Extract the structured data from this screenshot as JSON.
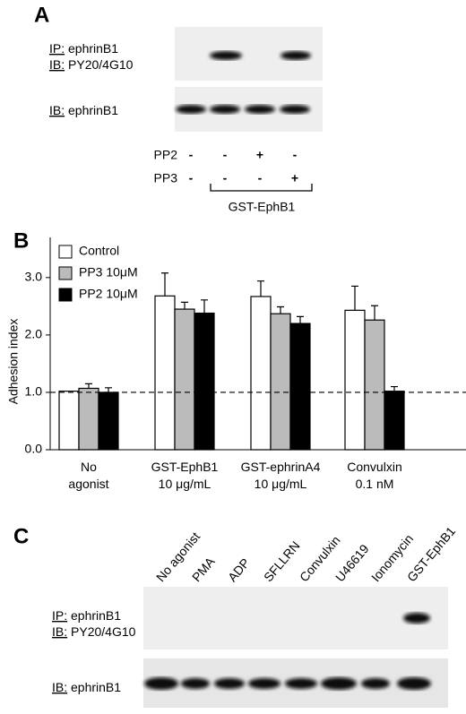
{
  "panel_a": {
    "label": "A",
    "blot1": [
      {
        "prefix": "IP:",
        "text": "ephrinB1"
      },
      {
        "prefix": "IB:",
        "text": "PY20/4G10"
      }
    ],
    "blot2": [
      {
        "prefix": "IB:",
        "text": "ephrinB1"
      }
    ],
    "rows": [
      {
        "name": "PP2",
        "signs": [
          "-",
          "-",
          "+",
          "-"
        ]
      },
      {
        "name": "PP3",
        "signs": [
          "-",
          "-",
          "-",
          "+"
        ]
      }
    ],
    "bracket": "GST-EphB1"
  },
  "chart_data": {
    "type": "bar",
    "label": "B",
    "ylabel": "Adhesion index",
    "categories": [
      "No\nagonist",
      "GST-EphB1\n10 μg/mL",
      "GST-ephrinA4\n10 μg/mL",
      "Convulxin\n0.1 nM"
    ],
    "series": [
      {
        "name": "Control",
        "color": "#ffffff",
        "values": [
          1.02,
          2.68,
          2.67,
          2.43
        ],
        "errors": [
          null,
          0.4,
          0.27,
          0.42
        ]
      },
      {
        "name": "PP3 10μM",
        "color": "#bbbbbb",
        "values": [
          1.07,
          2.45,
          2.37,
          2.26
        ],
        "errors": [
          0.08,
          0.12,
          0.12,
          0.25
        ]
      },
      {
        "name": "PP2 10μM",
        "color": "#000000",
        "values": [
          1.0,
          2.38,
          2.2,
          1.02
        ],
        "errors": [
          0.08,
          0.23,
          0.12,
          0.08
        ]
      }
    ],
    "ylim": [
      0,
      3.7
    ],
    "yticks": [
      {
        "value": 0,
        "label": "0.0"
      },
      {
        "value": 1,
        "label": "1.0"
      },
      {
        "value": 2,
        "label": "2.0"
      },
      {
        "value": 3,
        "label": "3.0"
      }
    ],
    "reference_line": 1,
    "legend": "top-left"
  },
  "panel_c": {
    "label": "C",
    "lanes": [
      "No agonist",
      "PMA",
      "ADP",
      "SFLLRN",
      "Convulxin",
      "U46619",
      "Ionomycin",
      "GST-EphB1"
    ],
    "blot1": [
      {
        "prefix": "IP:",
        "text": "ephrinB1"
      },
      {
        "prefix": "IB:",
        "text": "PY20/4G10"
      }
    ],
    "blot2": [
      {
        "prefix": "IB:",
        "text": "ephrinB1"
      }
    ]
  }
}
